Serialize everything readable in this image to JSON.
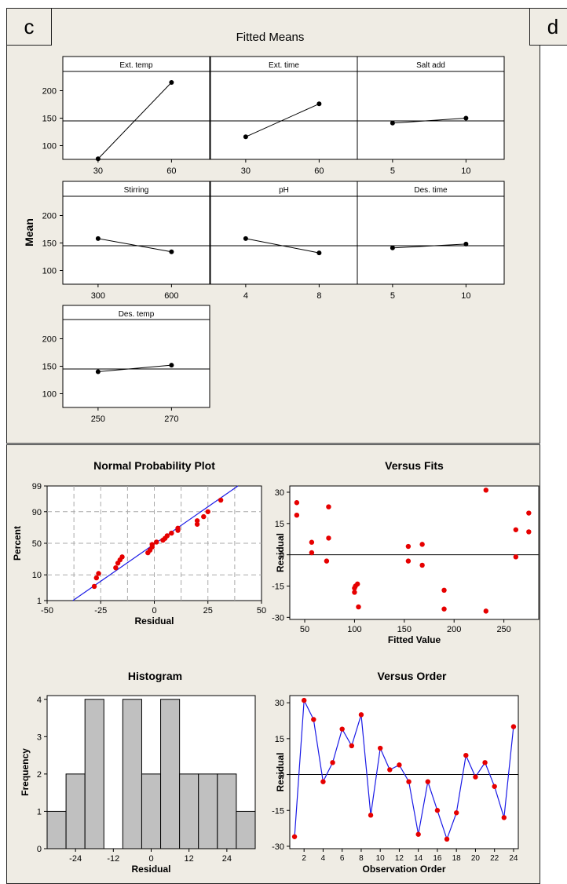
{
  "panel_labels": {
    "c": "c",
    "d": "d"
  },
  "chart_data": [
    {
      "id": "fitted-means",
      "type": "line",
      "title": "Fitted Means",
      "ylabel": "Mean",
      "ylim": [
        75,
        235
      ],
      "yticks": [
        100,
        150,
        200
      ],
      "reference_mean": 145,
      "grid": false,
      "factors": [
        {
          "name": "Ext. temp",
          "levels": [
            "30",
            "60"
          ],
          "means": [
            76,
            215
          ]
        },
        {
          "name": "Ext. time",
          "levels": [
            "30",
            "60"
          ],
          "means": [
            116,
            176
          ]
        },
        {
          "name": "Salt add",
          "levels": [
            "5",
            "10"
          ],
          "means": [
            141,
            150
          ]
        },
        {
          "name": "Stirring",
          "levels": [
            "300",
            "600"
          ],
          "means": [
            158,
            134
          ]
        },
        {
          "name": "pH",
          "levels": [
            "4",
            "8"
          ],
          "means": [
            158,
            132
          ]
        },
        {
          "name": "Des. time",
          "levels": [
            "5",
            "10"
          ],
          "means": [
            141,
            148
          ]
        },
        {
          "name": "Des. temp",
          "levels": [
            "250",
            "270"
          ],
          "means": [
            140,
            152
          ]
        }
      ]
    },
    {
      "id": "normal-probability-plot",
      "type": "scatter",
      "title": "Normal Probability Plot",
      "xlabel": "Residual",
      "ylabel": "Percent",
      "xlim": [
        -50,
        50
      ],
      "xticks": [
        -50,
        -25,
        0,
        25,
        50
      ],
      "yticks": [
        "1",
        "10",
        "50",
        "90",
        "99"
      ],
      "grid": true,
      "fit_line": {
        "x1": -38,
        "y1": 1,
        "x2": 39,
        "y2": 99
      },
      "points": [
        {
          "x": -28,
          "p": 4
        },
        {
          "x": -27,
          "p": 8
        },
        {
          "x": -26,
          "p": 11
        },
        {
          "x": -18,
          "p": 16
        },
        {
          "x": -17,
          "p": 21
        },
        {
          "x": -16,
          "p": 25
        },
        {
          "x": -15,
          "p": 29
        },
        {
          "x": -3,
          "p": 35
        },
        {
          "x": -2,
          "p": 39
        },
        {
          "x": -1,
          "p": 44
        },
        {
          "x": -1,
          "p": 48
        },
        {
          "x": 1,
          "p": 52
        },
        {
          "x": 4,
          "p": 55
        },
        {
          "x": 5,
          "p": 58
        },
        {
          "x": 6,
          "p": 62
        },
        {
          "x": 8,
          "p": 66
        },
        {
          "x": 11,
          "p": 70
        },
        {
          "x": 11,
          "p": 73
        },
        {
          "x": 20,
          "p": 78
        },
        {
          "x": 20,
          "p": 82
        },
        {
          "x": 23,
          "p": 86
        },
        {
          "x": 25,
          "p": 90
        },
        {
          "x": 31,
          "p": 96
        }
      ]
    },
    {
      "id": "versus-fits",
      "type": "scatter",
      "title": "Versus Fits",
      "xlabel": "Fitted Value",
      "ylabel": "Residual",
      "xlim": [
        35,
        285
      ],
      "ylim": [
        -31,
        33
      ],
      "xticks": [
        50,
        100,
        150,
        200,
        250
      ],
      "yticks": [
        -30,
        -15,
        0,
        15,
        30
      ],
      "reference_line": 0,
      "grid": false,
      "points": [
        {
          "x": 42,
          "y": 25
        },
        {
          "x": 42,
          "y": 19
        },
        {
          "x": 57,
          "y": 6
        },
        {
          "x": 57,
          "y": 1
        },
        {
          "x": 72,
          "y": -3
        },
        {
          "x": 74,
          "y": 23
        },
        {
          "x": 74,
          "y": 8
        },
        {
          "x": 100,
          "y": -16
        },
        {
          "x": 100,
          "y": -18
        },
        {
          "x": 101,
          "y": -15
        },
        {
          "x": 103,
          "y": -14
        },
        {
          "x": 104,
          "y": -25
        },
        {
          "x": 154,
          "y": 4
        },
        {
          "x": 154,
          "y": -3
        },
        {
          "x": 168,
          "y": 5
        },
        {
          "x": 168,
          "y": -5
        },
        {
          "x": 190,
          "y": -17
        },
        {
          "x": 190,
          "y": -26
        },
        {
          "x": 232,
          "y": 31
        },
        {
          "x": 232,
          "y": -27
        },
        {
          "x": 262,
          "y": 12
        },
        {
          "x": 262,
          "y": -1
        },
        {
          "x": 275,
          "y": 20
        },
        {
          "x": 275,
          "y": 11
        }
      ]
    },
    {
      "id": "histogram",
      "type": "bar",
      "title": "Histogram",
      "xlabel": "Residual",
      "ylabel": "Frequency",
      "xlim": [
        -33,
        33
      ],
      "ylim": [
        0,
        4.1
      ],
      "xticks": [
        -24,
        -12,
        0,
        12,
        24
      ],
      "yticks": [
        0,
        1,
        2,
        3,
        4
      ],
      "bin_width": 6,
      "bins": [
        {
          "center": -30,
          "count": 1
        },
        {
          "center": -24,
          "count": 2
        },
        {
          "center": -18,
          "count": 4
        },
        {
          "center": -12,
          "count": 0
        },
        {
          "center": -6,
          "count": 4
        },
        {
          "center": 0,
          "count": 2
        },
        {
          "center": 6,
          "count": 4
        },
        {
          "center": 12,
          "count": 2
        },
        {
          "center": 18,
          "count": 2
        },
        {
          "center": 24,
          "count": 2
        },
        {
          "center": 30,
          "count": 1
        }
      ]
    },
    {
      "id": "versus-order",
      "type": "line",
      "title": "Versus Order",
      "xlabel": "Observation Order",
      "ylabel": "Residual",
      "xlim": [
        0.5,
        24.5
      ],
      "ylim": [
        -31,
        33
      ],
      "xticks": [
        2,
        4,
        6,
        8,
        10,
        12,
        14,
        16,
        18,
        20,
        22,
        24
      ],
      "yticks": [
        -30,
        -15,
        0,
        15,
        30
      ],
      "reference_line": 0,
      "grid": false,
      "x": [
        1,
        2,
        3,
        4,
        5,
        6,
        7,
        8,
        9,
        10,
        11,
        12,
        13,
        14,
        15,
        16,
        17,
        18,
        19,
        20,
        21,
        22,
        23,
        24
      ],
      "y": [
        -26,
        31,
        23,
        -3,
        5,
        19,
        12,
        25,
        -17,
        11,
        2,
        4,
        -3,
        -25,
        -3,
        -15,
        -27,
        -16,
        8,
        -1,
        5,
        -5,
        -18,
        20
      ]
    }
  ]
}
